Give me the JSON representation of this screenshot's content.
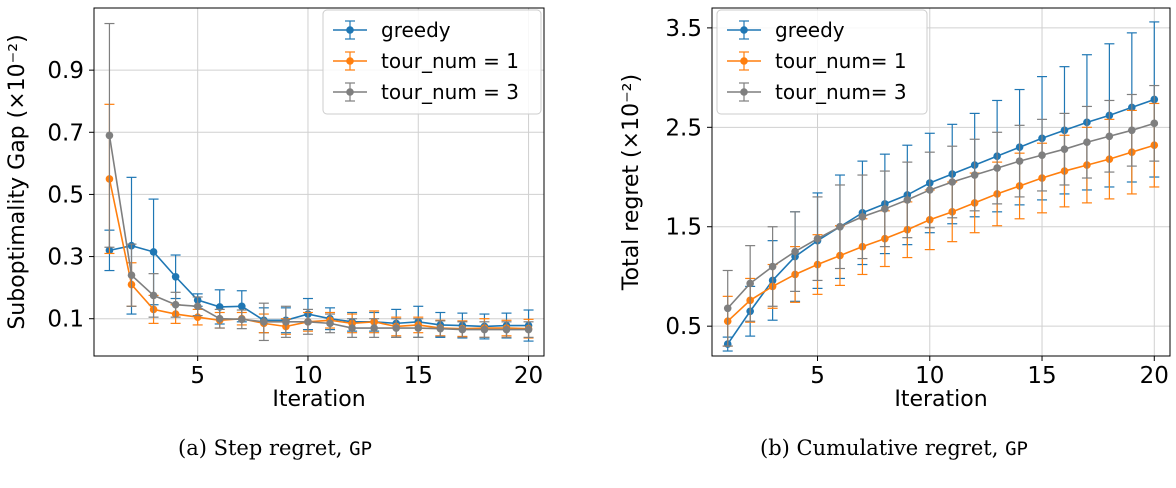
{
  "chart_data": [
    {
      "type": "line",
      "ylabel": "Suboptimality Gap (×10⁻²)",
      "xlabel": "Iteration",
      "caption": "(a) Step regret,",
      "caption_code": "GP",
      "xlim": [
        0.3,
        20.7
      ],
      "ylim": [
        -0.02,
        1.1
      ],
      "xticks": [
        5,
        10,
        15,
        20
      ],
      "yticks": [
        0.1,
        0.3,
        0.5,
        0.7,
        0.9
      ],
      "ytick_labels": [
        "0.1",
        "0.3",
        "0.5",
        "0.7",
        "0.9"
      ],
      "grid": true,
      "legend_position": "upper right",
      "x": [
        1,
        2,
        3,
        4,
        5,
        6,
        7,
        8,
        9,
        10,
        11,
        12,
        13,
        14,
        15,
        16,
        17,
        18,
        19,
        20
      ],
      "series": [
        {
          "name": "greedy",
          "color": "#1f77b4",
          "y": [
            0.32,
            0.335,
            0.315,
            0.235,
            0.16,
            0.138,
            0.14,
            0.095,
            0.095,
            0.115,
            0.1,
            0.09,
            0.09,
            0.085,
            0.09,
            0.08,
            0.078,
            0.075,
            0.078,
            0.078
          ],
          "err": [
            0.065,
            0.22,
            0.17,
            0.07,
            0.02,
            0.055,
            0.05,
            0.04,
            0.04,
            0.05,
            0.035,
            0.03,
            0.03,
            0.045,
            0.05,
            0.04,
            0.04,
            0.04,
            0.04,
            0.05
          ]
        },
        {
          "name": "tour_num = 1",
          "color": "#ff7f0e",
          "y": [
            0.55,
            0.21,
            0.13,
            0.115,
            0.105,
            0.095,
            0.1,
            0.085,
            0.075,
            0.09,
            0.095,
            0.085,
            0.09,
            0.075,
            0.08,
            0.07,
            0.068,
            0.07,
            0.07,
            0.068
          ],
          "err": [
            0.24,
            0.07,
            0.045,
            0.03,
            0.025,
            0.025,
            0.02,
            0.03,
            0.025,
            0.03,
            0.025,
            0.03,
            0.035,
            0.03,
            0.025,
            0.025,
            0.025,
            0.03,
            0.025,
            0.03
          ]
        },
        {
          "name": "tour_num = 3",
          "color": "#7f7f7f",
          "y": [
            0.69,
            0.24,
            0.175,
            0.145,
            0.14,
            0.1,
            0.098,
            0.09,
            0.09,
            0.09,
            0.085,
            0.07,
            0.07,
            0.07,
            0.07,
            0.068,
            0.065,
            0.065,
            0.065,
            0.065
          ],
          "err": [
            0.36,
            0.1,
            0.07,
            0.04,
            0.03,
            0.03,
            0.03,
            0.06,
            0.05,
            0.04,
            0.03,
            0.03,
            0.03,
            0.03,
            0.03,
            0.025,
            0.025,
            0.025,
            0.025,
            0.025
          ]
        }
      ]
    },
    {
      "type": "line",
      "ylabel": "Total regret (×10⁻²)",
      "xlabel": "Iteration",
      "caption": "(b) Cumulative regret,",
      "caption_code": "GP",
      "xlim": [
        0.3,
        20.7
      ],
      "ylim": [
        0.2,
        3.7
      ],
      "xticks": [
        5,
        10,
        15,
        20
      ],
      "yticks": [
        0.5,
        1.5,
        2.5,
        3.5
      ],
      "ytick_labels": [
        "0.5",
        "1.5",
        "2.5",
        "3.5"
      ],
      "grid": true,
      "legend_position": "upper left",
      "x": [
        1,
        2,
        3,
        4,
        5,
        6,
        7,
        8,
        9,
        10,
        11,
        12,
        13,
        14,
        15,
        16,
        17,
        18,
        19,
        20
      ],
      "series": [
        {
          "name": "greedy",
          "color": "#1f77b4",
          "y": [
            0.32,
            0.65,
            0.96,
            1.2,
            1.36,
            1.5,
            1.64,
            1.73,
            1.82,
            1.94,
            2.03,
            2.12,
            2.21,
            2.3,
            2.39,
            2.47,
            2.55,
            2.62,
            2.7,
            2.78
          ],
          "err": [
            0.07,
            0.25,
            0.4,
            0.45,
            0.48,
            0.52,
            0.52,
            0.5,
            0.5,
            0.5,
            0.5,
            0.52,
            0.56,
            0.58,
            0.62,
            0.64,
            0.68,
            0.72,
            0.75,
            0.78
          ]
        },
        {
          "name": "tour_num= 1",
          "color": "#ff7f0e",
          "y": [
            0.55,
            0.76,
            0.9,
            1.02,
            1.12,
            1.21,
            1.3,
            1.38,
            1.47,
            1.57,
            1.65,
            1.74,
            1.83,
            1.91,
            1.99,
            2.06,
            2.12,
            2.18,
            2.25,
            2.32
          ],
          "err": [
            0.25,
            0.22,
            0.22,
            0.28,
            0.3,
            0.3,
            0.28,
            0.28,
            0.28,
            0.3,
            0.3,
            0.3,
            0.32,
            0.33,
            0.35,
            0.36,
            0.38,
            0.4,
            0.42,
            0.42
          ]
        },
        {
          "name": "tour_num= 3",
          "color": "#7f7f7f",
          "y": [
            0.68,
            0.93,
            1.1,
            1.25,
            1.38,
            1.5,
            1.6,
            1.68,
            1.77,
            1.87,
            1.95,
            2.02,
            2.09,
            2.16,
            2.22,
            2.28,
            2.35,
            2.41,
            2.47,
            2.54
          ],
          "err": [
            0.38,
            0.38,
            0.4,
            0.4,
            0.42,
            0.42,
            0.42,
            0.38,
            0.38,
            0.38,
            0.36,
            0.36,
            0.36,
            0.36,
            0.36,
            0.36,
            0.36,
            0.36,
            0.36,
            0.38
          ]
        }
      ]
    }
  ]
}
